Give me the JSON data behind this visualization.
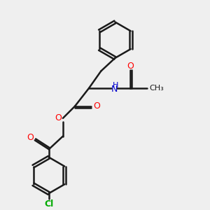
{
  "background_color": "#efefef",
  "bond_color": "#1a1a1a",
  "oxygen_color": "#ff0000",
  "nitrogen_color": "#0000cd",
  "chlorine_color": "#00aa00",
  "line_width": 1.8,
  "fig_width": 3.0,
  "fig_height": 3.0,
  "dpi": 100,
  "xlim": [
    0,
    10
  ],
  "ylim": [
    0,
    10
  ]
}
